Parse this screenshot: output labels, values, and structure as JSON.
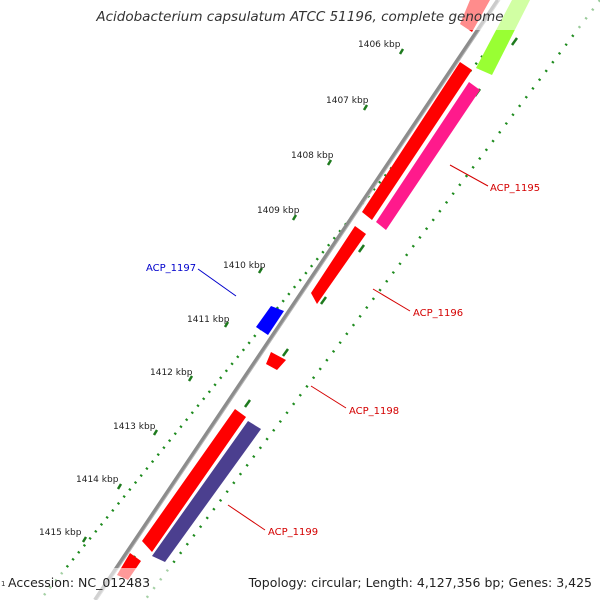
{
  "title": "Acidobacterium capsulatum ATCC 51196, complete genome",
  "ticks": [
    "1406 kbp",
    "1407 kbp",
    "1408 kbp",
    "1409 kbp",
    "1410 kbp",
    "1411 kbp",
    "1412 kbp",
    "1413 kbp",
    "1414 kbp",
    "1415 kbp"
  ],
  "genes": [
    {
      "label": "ACP_1195",
      "color": "#d40000"
    },
    {
      "label": "ACP_1196",
      "color": "#d40000"
    },
    {
      "label": "ACP_1197",
      "color": "#0000cc"
    },
    {
      "label": "ACP_1198",
      "color": "#d40000"
    },
    {
      "label": "ACP_1199",
      "color": "#d40000"
    }
  ],
  "footer": {
    "start_mark": "1",
    "accession": "Accession: NC_012483",
    "summary": "Topology: circular; Length: 4,127,356 bp; Genes: 3,425"
  },
  "colors": {
    "backbone": "#8a8a8a",
    "forward_cds": "#ff0000",
    "reverse_cds_pink": "#ff1a8c",
    "reverse_cds_purple": "#4b3f8f",
    "reverse_cds_green": "#99ff33",
    "blue_cds": "#0000ff",
    "tick_dots": "#228b22"
  }
}
